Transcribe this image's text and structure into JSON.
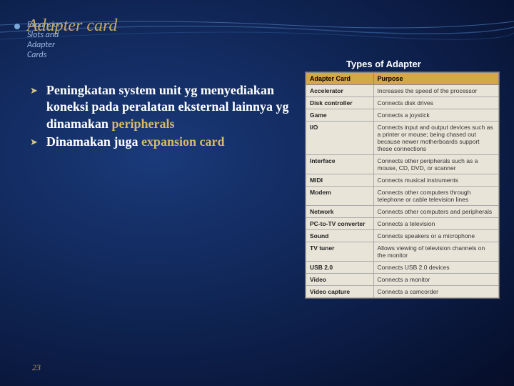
{
  "header": {
    "subtitle": "Expansion Slots and Adapter Cards",
    "title": "Adapter card"
  },
  "types_heading": "Types of Adapter",
  "bullets": [
    {
      "pre": "Peningkatan system unit yg menyediakan koneksi pada peralatan eksternal lainnya yg dinamakan ",
      "hl": "peripherals",
      "post": ""
    },
    {
      "pre": "Dinamakan juga ",
      "hl": "expansion card",
      "post": ""
    }
  ],
  "table": {
    "col1": "Adapter Card",
    "col2": "Purpose",
    "rows": [
      [
        "Accelerator",
        "Increases the speed of the processor"
      ],
      [
        "Disk controller",
        "Connects disk drives"
      ],
      [
        "Game",
        "Connects a joystick"
      ],
      [
        "I/O",
        "Connects input and output devices such as a printer or mouse; being chased out because newer motherboards support these connections"
      ],
      [
        "Interface",
        "Connects other peripherals such as a mouse, CD, DVD, or scanner"
      ],
      [
        "MIDI",
        "Connects musical instruments"
      ],
      [
        "Modem",
        "Connects other computers through telephone or cable television lines"
      ],
      [
        "Network",
        "Connects other computers and peripherals"
      ],
      [
        "PC-to-TV converter",
        "Connects a television"
      ],
      [
        "Sound",
        "Connects speakers or a microphone"
      ],
      [
        "TV tuner",
        "Allows viewing of television channels on the monitor"
      ],
      [
        "USB 2.0",
        "Connects USB 2.0 devices"
      ],
      [
        "Video",
        "Connects a monitor"
      ],
      [
        "Video capture",
        "Connects a camcorder"
      ]
    ]
  },
  "page_number": "23",
  "colors": {
    "title_color": "#c8a868",
    "highlight_color": "#d8b868",
    "table_header_bg": "#d4a848"
  }
}
